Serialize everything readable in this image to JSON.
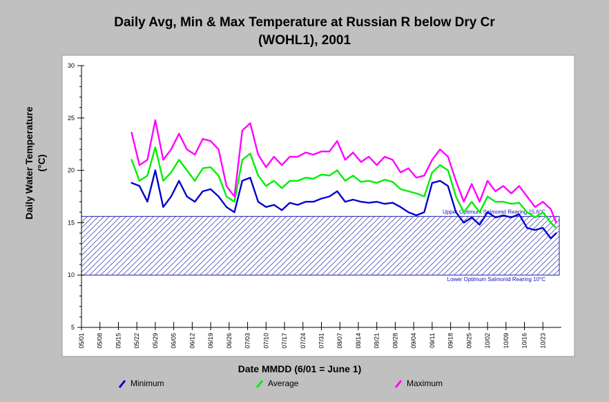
{
  "chart_data": {
    "type": "line",
    "title_line1": "Daily Avg, Min & Max Temperature at Russian R below Dry Cr",
    "title_line2": "(WOHL1), 2001",
    "xlabel": "Date MMDD (6/01 = June 1)",
    "ylabel_line1": "Daily Water Temperature",
    "ylabel_line2": "(°C)",
    "ylim": [
      5,
      30
    ],
    "yticks": [
      "5",
      "10",
      "15",
      "20",
      "25",
      "30"
    ],
    "xtick_labels": [
      "05/01",
      "05/08",
      "05/15",
      "05/22",
      "05/29",
      "06/05",
      "06/12",
      "06/19",
      "06/26",
      "07/03",
      "07/10",
      "07/17",
      "07/24",
      "07/31",
      "08/07",
      "08/14",
      "08/21",
      "08/28",
      "09/04",
      "09/11",
      "09/18",
      "09/25",
      "10/02",
      "10/09",
      "10/16",
      "10/23"
    ],
    "x_start": "05/01",
    "x_end": "10/30",
    "grid": false,
    "legend_position": "bottom",
    "reference_band": {
      "upper": 15.6,
      "lower": 10,
      "upper_label": "Upper Optimum Salmonid Rearing 15.6°C",
      "lower_label": "Lower Optimum Salmonid Rearing 10°C"
    },
    "x": [
      "05/20",
      "05/23",
      "05/26",
      "05/29",
      "06/01",
      "06/04",
      "06/07",
      "06/10",
      "06/13",
      "06/16",
      "06/19",
      "06/22",
      "06/25",
      "06/28",
      "07/01",
      "07/04",
      "07/07",
      "07/10",
      "07/13",
      "07/16",
      "07/19",
      "07/22",
      "07/25",
      "07/28",
      "07/31",
      "08/03",
      "08/06",
      "08/09",
      "08/12",
      "08/15",
      "08/18",
      "08/21",
      "08/24",
      "08/27",
      "08/30",
      "09/02",
      "09/05",
      "09/08",
      "09/11",
      "09/14",
      "09/17",
      "09/20",
      "09/23",
      "09/26",
      "09/29",
      "10/02",
      "10/05",
      "10/08",
      "10/11",
      "10/14",
      "10/17",
      "10/20",
      "10/23",
      "10/26",
      "10/28"
    ],
    "series": [
      {
        "name": "Minimum",
        "color": "#0000cc",
        "values": [
          18.8,
          18.5,
          17.0,
          20.0,
          16.5,
          17.5,
          19.0,
          17.5,
          17.0,
          18.0,
          18.2,
          17.5,
          16.5,
          16.0,
          19.0,
          19.3,
          17.0,
          16.5,
          16.7,
          16.2,
          16.9,
          16.7,
          17.0,
          17.0,
          17.3,
          17.5,
          18.0,
          17.0,
          17.2,
          17.0,
          16.9,
          17.0,
          16.8,
          16.9,
          16.5,
          16.0,
          15.7,
          16.0,
          18.8,
          19.0,
          18.5,
          16.0,
          15.0,
          15.5,
          14.8,
          16.0,
          15.5,
          15.7,
          15.5,
          15.8,
          14.5,
          14.3,
          14.5,
          13.5,
          14.0
        ]
      },
      {
        "name": "Average",
        "color": "#00ee00",
        "values": [
          21.0,
          19.0,
          19.5,
          22.2,
          19.0,
          19.8,
          21.0,
          20.0,
          19.0,
          20.2,
          20.3,
          19.5,
          17.5,
          17.0,
          21.0,
          21.6,
          19.5,
          18.5,
          19.0,
          18.3,
          19.0,
          19.0,
          19.3,
          19.2,
          19.6,
          19.5,
          20.0,
          19.0,
          19.5,
          18.9,
          19.0,
          18.8,
          19.1,
          18.9,
          18.2,
          18.0,
          17.8,
          17.5,
          19.8,
          20.5,
          20.0,
          17.5,
          16.0,
          17.0,
          16.0,
          17.5,
          17.0,
          17.0,
          16.8,
          16.9,
          16.0,
          15.5,
          16.0,
          15.0,
          14.5
        ]
      },
      {
        "name": "Maximum",
        "color": "#ff00ff",
        "values": [
          23.6,
          20.5,
          21.0,
          24.8,
          21.0,
          22.0,
          23.5,
          22.0,
          21.5,
          23.0,
          22.8,
          22.0,
          18.5,
          17.5,
          23.8,
          24.5,
          21.5,
          20.3,
          21.3,
          20.5,
          21.3,
          21.3,
          21.7,
          21.5,
          21.8,
          21.8,
          22.8,
          21.0,
          21.7,
          20.8,
          21.3,
          20.5,
          21.3,
          21.0,
          19.8,
          20.2,
          19.3,
          19.5,
          21.0,
          22.0,
          21.3,
          19.0,
          17.0,
          18.7,
          17.0,
          19.0,
          18.0,
          18.5,
          17.8,
          18.5,
          17.5,
          16.5,
          17.0,
          16.3,
          15.0
        ]
      }
    ]
  }
}
